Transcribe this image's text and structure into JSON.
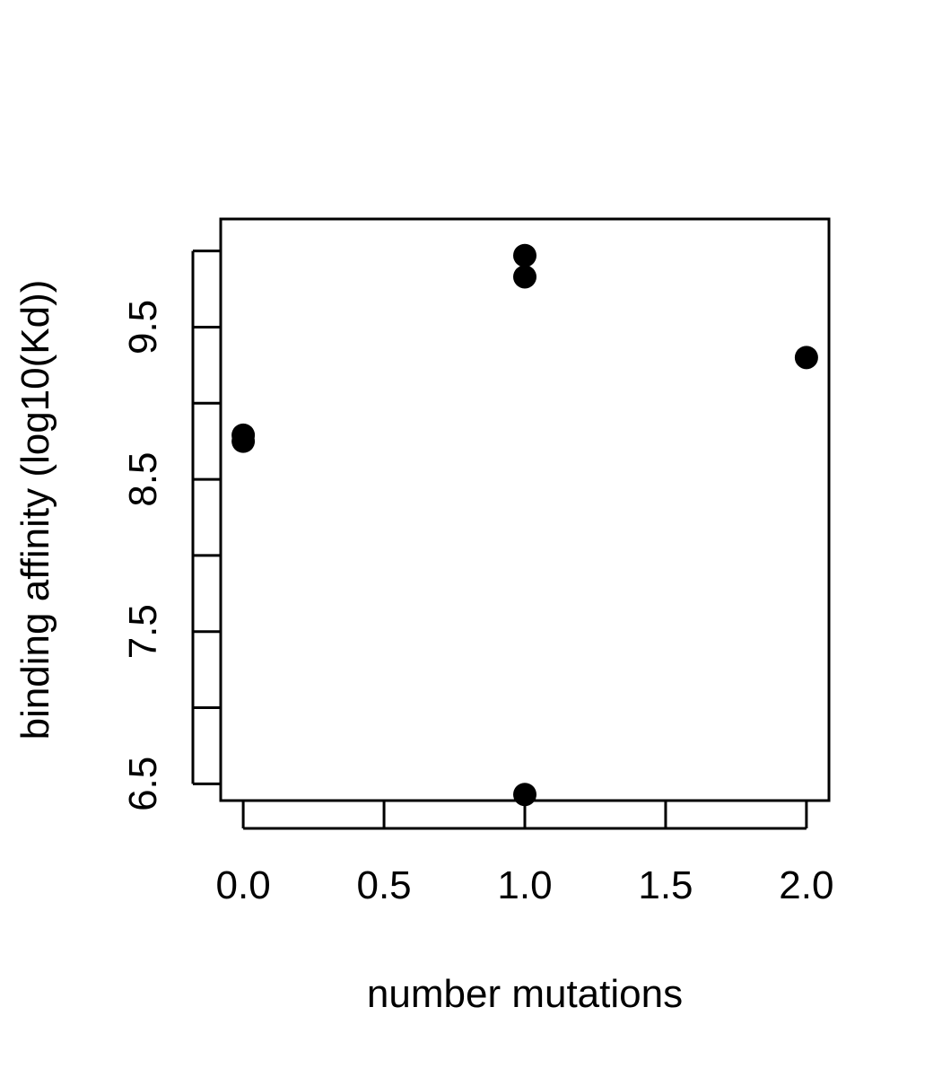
{
  "chart_data": {
    "type": "scatter",
    "title": "",
    "xlabel": "number mutations",
    "ylabel": "binding affinity (log10(Kd))",
    "xlim": [
      -0.08,
      2.08
    ],
    "ylim": [
      6.39,
      10.21
    ],
    "x_ticks": [
      0.0,
      0.5,
      1.0,
      1.5,
      2.0
    ],
    "x_tick_labels": [
      "0.0",
      "0.5",
      "1.0",
      "1.5",
      "2.0"
    ],
    "y_ticks": [
      6.5,
      7.0,
      7.5,
      8.0,
      8.5,
      9.0,
      9.5,
      10.0
    ],
    "y_tick_labels": [
      "6.5",
      "",
      "7.5",
      "",
      "8.5",
      "",
      "9.5",
      ""
    ],
    "grid": false,
    "legend": "none",
    "marker_color": "#000000",
    "points": [
      {
        "x": 0,
        "y": 8.79
      },
      {
        "x": 0,
        "y": 8.75
      },
      {
        "x": 1,
        "y": 9.97
      },
      {
        "x": 1,
        "y": 9.83
      },
      {
        "x": 1,
        "y": 6.43
      },
      {
        "x": 2,
        "y": 9.3
      }
    ]
  }
}
